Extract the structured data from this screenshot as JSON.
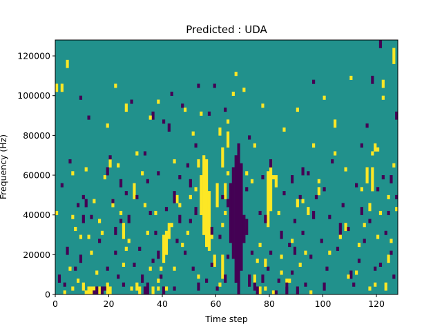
{
  "chart_data": {
    "type": "heatmap",
    "title": "Predicted : UDA",
    "xlabel": "Time step",
    "ylabel": "Frequency (Hz)",
    "xlim": [
      0,
      128
    ],
    "ylim": [
      0,
      128000
    ],
    "xticks": [
      0,
      20,
      40,
      60,
      80,
      100,
      120
    ],
    "yticks": [
      0,
      20000,
      40000,
      60000,
      80000,
      100000,
      120000
    ],
    "grid": false,
    "colormap": "viridis",
    "colors": {
      "background": "#21918c",
      "high": "#fde725",
      "low": "#440154"
    },
    "grid_shape": {
      "columns": 128,
      "rows": 64,
      "row_height_hz": 2000
    },
    "yellow_segments": [
      [
        0,
        102000,
        106000
      ],
      [
        2,
        102000,
        106000
      ],
      [
        4,
        114000,
        118000
      ],
      [
        6,
        60000,
        62000
      ],
      [
        6,
        2000,
        4000
      ],
      [
        10,
        2000,
        6000
      ],
      [
        11,
        0,
        2000
      ],
      [
        12,
        0,
        4000
      ],
      [
        13,
        0,
        4000
      ],
      [
        14,
        0,
        4000
      ],
      [
        16,
        0,
        4000
      ],
      [
        19,
        0,
        6000
      ],
      [
        20,
        0,
        4000
      ],
      [
        20,
        64000,
        68000
      ],
      [
        21,
        44000,
        48000
      ],
      [
        25,
        28000,
        36000
      ],
      [
        26,
        92000,
        96000
      ],
      [
        29,
        48000,
        56000
      ],
      [
        30,
        2000,
        6000
      ],
      [
        31,
        0,
        4000
      ],
      [
        36,
        0,
        4000
      ],
      [
        38,
        6000,
        8000
      ],
      [
        40,
        16000,
        30000
      ],
      [
        41,
        20000,
        32000
      ],
      [
        42,
        28000,
        36000
      ],
      [
        45,
        46000,
        50000
      ],
      [
        53,
        64000,
        68000
      ],
      [
        54,
        40000,
        60000
      ],
      [
        55,
        30000,
        70000
      ],
      [
        56,
        24000,
        68000
      ],
      [
        57,
        22000,
        52000
      ],
      [
        59,
        14000,
        20000
      ],
      [
        60,
        44000,
        56000
      ],
      [
        61,
        80000,
        84000
      ],
      [
        62,
        8000,
        20000
      ],
      [
        62,
        64000,
        74000
      ],
      [
        63,
        48000,
        56000
      ],
      [
        64,
        74000,
        82000
      ],
      [
        74,
        6000,
        10000
      ],
      [
        76,
        0,
        4000
      ],
      [
        78,
        14000,
        18000
      ],
      [
        79,
        34000,
        62000
      ],
      [
        80,
        42000,
        68000
      ],
      [
        81,
        0,
        2000
      ],
      [
        82,
        54000,
        60000
      ],
      [
        86,
        4000,
        8000
      ],
      [
        90,
        44000,
        48000
      ],
      [
        94,
        40000,
        44000
      ],
      [
        98,
        50000,
        54000
      ],
      [
        104,
        84000,
        88000
      ],
      [
        108,
        32000,
        36000
      ],
      [
        116,
        56000,
        62000
      ],
      [
        117,
        42000,
        46000
      ],
      [
        118,
        52000,
        64000
      ],
      [
        119,
        72000,
        76000
      ],
      [
        120,
        72000,
        74000
      ],
      [
        122,
        104000,
        108000
      ],
      [
        123,
        2000,
        6000
      ],
      [
        124,
        16000,
        20000
      ],
      [
        126,
        116000,
        124000
      ]
    ],
    "purple_segments": [
      [
        1,
        6000,
        10000
      ],
      [
        4,
        20000,
        24000
      ],
      [
        9,
        16000,
        20000
      ],
      [
        10,
        36000,
        40000
      ],
      [
        11,
        44000,
        48000
      ],
      [
        14,
        0,
        2000
      ],
      [
        15,
        0,
        4000
      ],
      [
        17,
        0,
        4000
      ],
      [
        19,
        60000,
        64000
      ],
      [
        22,
        30000,
        34000
      ],
      [
        24,
        54000,
        58000
      ],
      [
        27,
        36000,
        40000
      ],
      [
        32,
        6000,
        10000
      ],
      [
        33,
        0,
        4000
      ],
      [
        34,
        0,
        6000
      ],
      [
        36,
        88000,
        92000
      ],
      [
        38,
        18000,
        22000
      ],
      [
        40,
        0,
        4000
      ],
      [
        42,
        82000,
        86000
      ],
      [
        44,
        46000,
        52000
      ],
      [
        46,
        36000,
        40000
      ],
      [
        50,
        54000,
        58000
      ],
      [
        52,
        40000,
        44000
      ],
      [
        53,
        2000,
        6000
      ],
      [
        58,
        30000,
        34000
      ],
      [
        63,
        6000,
        10000
      ],
      [
        64,
        44000,
        48000
      ],
      [
        65,
        26000,
        56000
      ],
      [
        66,
        18000,
        64000
      ],
      [
        67,
        6000,
        70000
      ],
      [
        68,
        0,
        76000
      ],
      [
        69,
        12000,
        66000
      ],
      [
        70,
        26000,
        40000
      ],
      [
        71,
        30000,
        38000
      ],
      [
        72,
        4000,
        10000
      ],
      [
        74,
        2000,
        6000
      ],
      [
        75,
        0,
        4000
      ],
      [
        77,
        6000,
        10000
      ],
      [
        78,
        36000,
        40000
      ],
      [
        80,
        64000,
        68000
      ],
      [
        82,
        0,
        2000
      ],
      [
        84,
        28000,
        32000
      ],
      [
        86,
        0,
        6000
      ],
      [
        88,
        56000,
        60000
      ],
      [
        89,
        20000,
        24000
      ],
      [
        90,
        0,
        4000
      ],
      [
        92,
        60000,
        64000
      ],
      [
        96,
        38000,
        42000
      ],
      [
        100,
        2000,
        6000
      ],
      [
        106,
        30000,
        36000
      ],
      [
        110,
        8000,
        12000
      ],
      [
        114,
        40000,
        44000
      ],
      [
        118,
        106000,
        110000
      ],
      [
        121,
        124000,
        128000
      ],
      [
        125,
        56000,
        60000
      ],
      [
        127,
        88000,
        92000
      ]
    ],
    "yellow_singles": [
      [
        0,
        40000
      ],
      [
        3,
        0
      ],
      [
        5,
        12000
      ],
      [
        6,
        38000
      ],
      [
        7,
        32000
      ],
      [
        8,
        6000
      ],
      [
        9,
        28000
      ],
      [
        11,
        62000
      ],
      [
        12,
        28000
      ],
      [
        13,
        20000
      ],
      [
        14,
        46000
      ],
      [
        15,
        10000
      ],
      [
        16,
        36000
      ],
      [
        17,
        30000
      ],
      [
        18,
        58000
      ],
      [
        19,
        84000
      ],
      [
        22,
        104000
      ],
      [
        23,
        64000
      ],
      [
        24,
        40000
      ],
      [
        25,
        14000
      ],
      [
        26,
        22000
      ],
      [
        27,
        26000
      ],
      [
        28,
        2000
      ],
      [
        30,
        70000
      ],
      [
        32,
        60000
      ],
      [
        33,
        44000
      ],
      [
        34,
        30000
      ],
      [
        35,
        12000
      ],
      [
        35,
        88000
      ],
      [
        37,
        40000
      ],
      [
        38,
        2000
      ],
      [
        38,
        96000
      ],
      [
        39,
        12000
      ],
      [
        41,
        2000
      ],
      [
        43,
        34000
      ],
      [
        44,
        12000
      ],
      [
        44,
        66000
      ],
      [
        46,
        44000
      ],
      [
        47,
        24000
      ],
      [
        48,
        92000
      ],
      [
        49,
        30000
      ],
      [
        50,
        48000
      ],
      [
        51,
        80000
      ],
      [
        52,
        52000
      ],
      [
        53,
        8000
      ],
      [
        54,
        90000
      ],
      [
        58,
        28000
      ],
      [
        61,
        4000
      ],
      [
        62,
        34000
      ],
      [
        63,
        40000
      ],
      [
        64,
        60000
      ],
      [
        64,
        86000
      ],
      [
        66,
        100000
      ],
      [
        67,
        110000
      ],
      [
        70,
        102000
      ],
      [
        71,
        60000
      ],
      [
        73,
        56000
      ],
      [
        74,
        74000
      ],
      [
        75,
        16000
      ],
      [
        76,
        24000
      ],
      [
        77,
        94000
      ],
      [
        78,
        2000
      ],
      [
        81,
        58000
      ],
      [
        83,
        40000
      ],
      [
        84,
        10000
      ],
      [
        84,
        18000
      ],
      [
        85,
        82000
      ],
      [
        87,
        6000
      ],
      [
        88,
        26000
      ],
      [
        90,
        92000
      ],
      [
        91,
        14000
      ],
      [
        92,
        46000
      ],
      [
        93,
        20000
      ],
      [
        95,
        0
      ],
      [
        96,
        74000
      ],
      [
        98,
        56000
      ],
      [
        100,
        98000
      ],
      [
        102,
        20000
      ],
      [
        104,
        70000
      ],
      [
        106,
        28000
      ],
      [
        108,
        62000
      ],
      [
        109,
        8000
      ],
      [
        110,
        108000
      ],
      [
        112,
        10000
      ],
      [
        113,
        24000
      ],
      [
        114,
        52000
      ],
      [
        115,
        34000
      ],
      [
        116,
        62000
      ],
      [
        117,
        2000
      ],
      [
        118,
        70000
      ],
      [
        119,
        4000
      ],
      [
        120,
        28000
      ],
      [
        121,
        40000
      ],
      [
        122,
        98000
      ],
      [
        124,
        48000
      ],
      [
        125,
        26000
      ],
      [
        126,
        64000
      ],
      [
        127,
        42000
      ]
    ],
    "purple_singles": [
      [
        2,
        54000
      ],
      [
        3,
        4000
      ],
      [
        5,
        66000
      ],
      [
        7,
        12000
      ],
      [
        8,
        44000
      ],
      [
        9,
        98000
      ],
      [
        10,
        48000
      ],
      [
        12,
        88000
      ],
      [
        13,
        38000
      ],
      [
        16,
        26000
      ],
      [
        18,
        2000
      ],
      [
        19,
        12000
      ],
      [
        20,
        68000
      ],
      [
        21,
        46000
      ],
      [
        22,
        20000
      ],
      [
        23,
        8000
      ],
      [
        24,
        36000
      ],
      [
        25,
        4000
      ],
      [
        26,
        50000
      ],
      [
        28,
        96000
      ],
      [
        29,
        14000
      ],
      [
        30,
        48000
      ],
      [
        31,
        22000
      ],
      [
        33,
        70000
      ],
      [
        34,
        56000
      ],
      [
        35,
        40000
      ],
      [
        36,
        16000
      ],
      [
        37,
        30000
      ],
      [
        38,
        60000
      ],
      [
        39,
        8000
      ],
      [
        40,
        86000
      ],
      [
        41,
        42000
      ],
      [
        43,
        100000
      ],
      [
        44,
        2000
      ],
      [
        45,
        26000
      ],
      [
        46,
        58000
      ],
      [
        47,
        94000
      ],
      [
        48,
        20000
      ],
      [
        49,
        64000
      ],
      [
        50,
        36000
      ],
      [
        51,
        12000
      ],
      [
        52,
        74000
      ],
      [
        53,
        104000
      ],
      [
        56,
        6000
      ],
      [
        57,
        90000
      ],
      [
        58,
        14000
      ],
      [
        59,
        104000
      ],
      [
        60,
        2000
      ],
      [
        61,
        28000
      ],
      [
        62,
        48000
      ],
      [
        63,
        92000
      ],
      [
        64,
        18000
      ],
      [
        71,
        52000
      ],
      [
        72,
        78000
      ],
      [
        73,
        20000
      ],
      [
        76,
        40000
      ],
      [
        77,
        58000
      ],
      [
        79,
        12000
      ],
      [
        80,
        20000
      ],
      [
        83,
        6000
      ],
      [
        85,
        50000
      ],
      [
        87,
        24000
      ],
      [
        88,
        10000
      ],
      [
        89,
        36000
      ],
      [
        91,
        48000
      ],
      [
        92,
        30000
      ],
      [
        93,
        4000
      ],
      [
        94,
        60000
      ],
      [
        95,
        18000
      ],
      [
        96,
        106000
      ],
      [
        97,
        48000
      ],
      [
        99,
        26000
      ],
      [
        100,
        52000
      ],
      [
        101,
        12000
      ],
      [
        102,
        38000
      ],
      [
        103,
        66000
      ],
      [
        105,
        22000
      ],
      [
        107,
        44000
      ],
      [
        109,
        32000
      ],
      [
        111,
        4000
      ],
      [
        112,
        54000
      ],
      [
        113,
        16000
      ],
      [
        114,
        74000
      ],
      [
        115,
        26000
      ],
      [
        116,
        84000
      ],
      [
        117,
        36000
      ],
      [
        119,
        12000
      ],
      [
        120,
        52000
      ],
      [
        121,
        14000
      ],
      [
        122,
        58000
      ],
      [
        123,
        30000
      ],
      [
        124,
        40000
      ],
      [
        125,
        20000
      ],
      [
        126,
        8000
      ],
      [
        127,
        48000
      ]
    ]
  }
}
